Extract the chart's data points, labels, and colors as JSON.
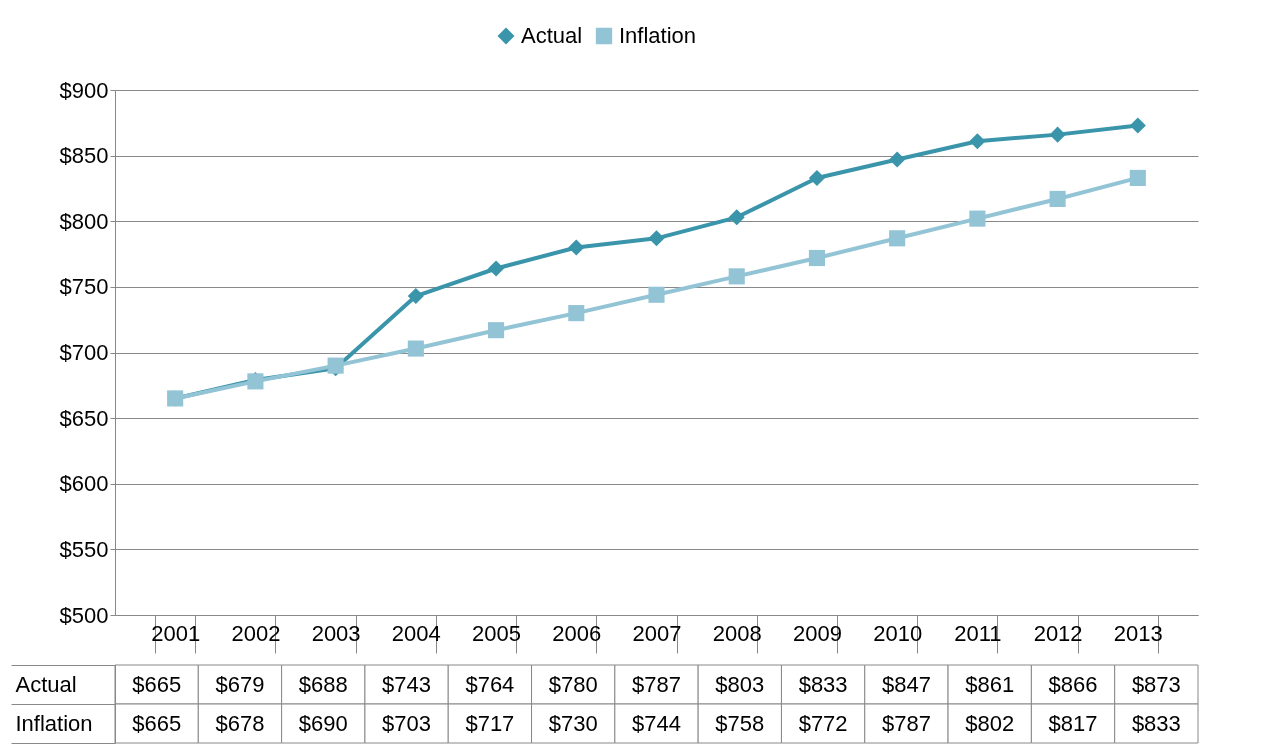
{
  "chart_data": {
    "type": "line",
    "categories": [
      "2001",
      "2002",
      "2003",
      "2004",
      "2005",
      "2006",
      "2007",
      "2008",
      "2009",
      "2010",
      "2011",
      "2012",
      "2013"
    ],
    "series": [
      {
        "name": "Actual",
        "color": "#3a95ab",
        "marker": "diamond",
        "values": [
          665,
          679,
          688,
          743,
          764,
          780,
          787,
          803,
          833,
          847,
          861,
          866,
          873
        ],
        "value_labels": [
          "$665",
          "$679",
          "$688",
          "$743",
          "$764",
          "$780",
          "$787",
          "$803",
          "$833",
          "$847",
          "$861",
          "$866",
          "$873"
        ]
      },
      {
        "name": "Inflation",
        "color": "#93c4d6",
        "marker": "square",
        "values": [
          665,
          678,
          690,
          703,
          717,
          730,
          744,
          758,
          772,
          787,
          802,
          817,
          833
        ],
        "value_labels": [
          "$665",
          "$678",
          "$690",
          "$703",
          "$717",
          "$730",
          "$744",
          "$758",
          "$772",
          "$787",
          "$802",
          "$817",
          "$833"
        ]
      }
    ],
    "ylim": [
      500,
      900
    ],
    "yticks": [
      {
        "value": 500,
        "label": "$500"
      },
      {
        "value": 550,
        "label": "$550"
      },
      {
        "value": 600,
        "label": "$600"
      },
      {
        "value": 650,
        "label": "$650"
      },
      {
        "value": 700,
        "label": "$700"
      },
      {
        "value": 750,
        "label": "$750"
      },
      {
        "value": 800,
        "label": "$800"
      },
      {
        "value": 850,
        "label": "$850"
      },
      {
        "value": 900,
        "label": "$900"
      }
    ],
    "grid": "y",
    "legend": "top"
  }
}
